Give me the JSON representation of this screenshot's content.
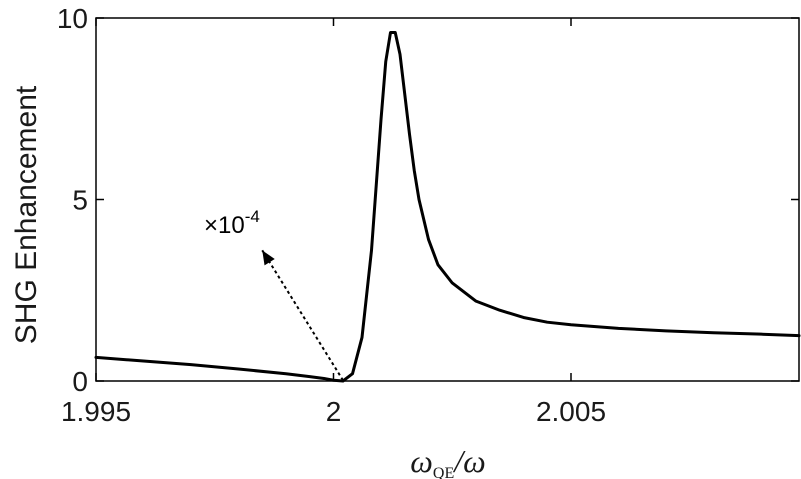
{
  "chart_data": {
    "type": "line",
    "title": "",
    "xlabel": {
      "symbol": "ω",
      "subscript": "QE",
      "slash": "/",
      "denominator": "ω"
    },
    "ylabel": "SHG Enhancement",
    "xlim": [
      1.995,
      2.0098
    ],
    "ylim": [
      0,
      10
    ],
    "x_ticks": [
      1.995,
      2.0,
      2.005
    ],
    "x_tick_labels": [
      "1.995",
      "2",
      "2.005"
    ],
    "y_ticks": [
      0,
      5,
      10
    ],
    "y_tick_labels": [
      "0",
      "5",
      "10"
    ],
    "grid": false,
    "legend": "none",
    "line_color": "#000000",
    "annotation": {
      "text": "×10",
      "exponent": "-4",
      "arrow_from": [
        2.0002,
        0.02
      ],
      "arrow_to": [
        1.9985,
        3.6
      ]
    },
    "series": [
      {
        "x": [
          1.995,
          1.996,
          1.997,
          1.998,
          1.999,
          1.9995,
          1.9998,
          2.0,
          2.0002,
          2.0004,
          2.0006,
          2.0008,
          2.001,
          2.0011,
          2.0012,
          2.0013,
          2.0014,
          2.0015,
          2.0016,
          2.0017,
          2.0018,
          2.002,
          2.0022,
          2.0025,
          2.003,
          2.0035,
          2.004,
          2.0045,
          2.005,
          2.006,
          2.007,
          2.008,
          2.009,
          2.0098
        ],
        "y": [
          0.65,
          0.55,
          0.45,
          0.33,
          0.2,
          0.12,
          0.07,
          0.02,
          0.0,
          0.2,
          1.2,
          3.6,
          7.2,
          8.8,
          9.6,
          9.6,
          9.0,
          7.9,
          6.8,
          5.8,
          5.0,
          3.9,
          3.2,
          2.7,
          2.2,
          1.95,
          1.75,
          1.62,
          1.55,
          1.45,
          1.38,
          1.33,
          1.29,
          1.25
        ]
      }
    ]
  }
}
